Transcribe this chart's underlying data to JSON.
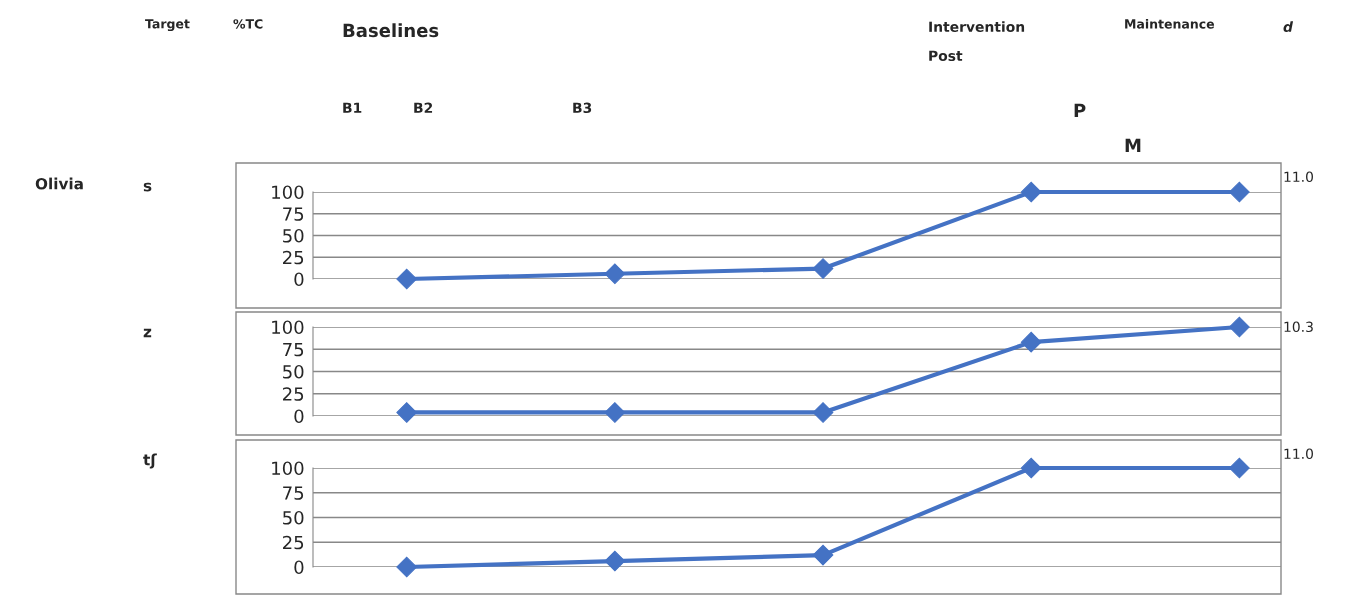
{
  "chart_data": [
    {
      "type": "line",
      "categories": [
        null,
        null,
        null,
        null,
        null
      ],
      "ylim": [
        0,
        100
      ],
      "yticks": [
        0,
        25,
        50,
        75,
        100
      ],
      "tick_labels": "y",
      "grid": "y",
      "marker": "diamond",
      "line_style": "solid",
      "legend": false,
      "series": [
        {
          "color": "#4472c4",
          "values": [
            0,
            6,
            12,
            100,
            100
          ]
        }
      ],
      "annotations": [
        "Target",
        "%TC",
        "Baselines",
        "Intervention",
        "Post",
        "Maintenance",
        "d",
        "B1",
        "B2",
        "B3",
        "P",
        "M",
        "Olivia",
        "s",
        "11.0"
      ]
    },
    {
      "type": "line",
      "categories": [
        null,
        null,
        null,
        null,
        null
      ],
      "ylim": [
        0,
        100
      ],
      "yticks": [
        0,
        25,
        50,
        75,
        100
      ],
      "tick_labels": "y",
      "grid": "y",
      "marker": "diamond",
      "line_style": "solid",
      "legend": false,
      "series": [
        {
          "color": "#4472c4",
          "values": [
            4,
            4,
            4,
            83,
            100
          ]
        }
      ],
      "annotations": [
        "z",
        "10.3"
      ]
    },
    {
      "type": "line",
      "categories": [
        null,
        null,
        null,
        null,
        null
      ],
      "ylim": [
        0,
        100
      ],
      "yticks": [
        0,
        25,
        50,
        75,
        100
      ],
      "tick_labels": "y",
      "grid": "y",
      "marker": "diamond",
      "line_style": "solid",
      "legend": false,
      "series": [
        {
          "color": "#4472c4",
          "values": [
            0,
            6,
            12,
            100,
            100
          ]
        }
      ],
      "annotations": [
        "tʃ",
        "11.0"
      ]
    }
  ]
}
